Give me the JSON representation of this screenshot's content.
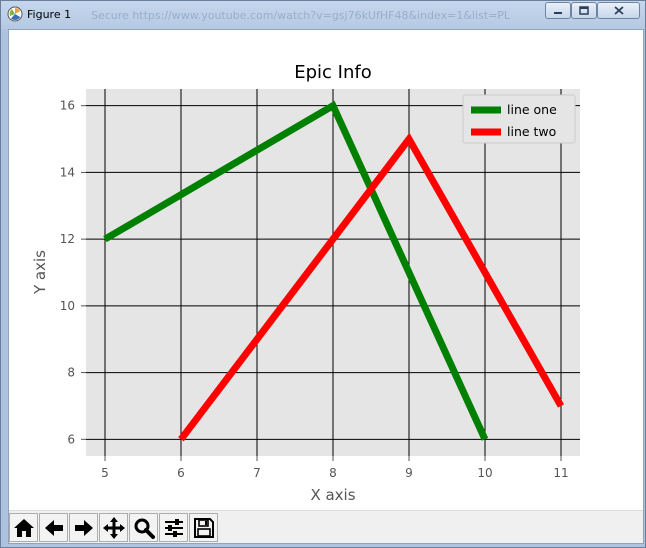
{
  "window": {
    "title": "Figure 1",
    "background_address_text": "Secure  https://www.youtube.com/watch?v=gsj76kUfHF48&index=1&list=PL"
  },
  "toolbar": {
    "buttons": [
      {
        "icon": "home-icon",
        "name": "home-button"
      },
      {
        "icon": "back-arrow-icon",
        "name": "back-button"
      },
      {
        "icon": "forward-arrow-icon",
        "name": "forward-button"
      },
      {
        "icon": "pan-icon",
        "name": "pan-button"
      },
      {
        "icon": "zoom-icon",
        "name": "zoom-button"
      },
      {
        "icon": "configure-subplots-icon",
        "name": "subplots-button"
      },
      {
        "icon": "save-icon",
        "name": "save-button"
      }
    ]
  },
  "chart_data": {
    "type": "line",
    "title": "Epic Info",
    "xlabel": "X axis",
    "ylabel": "Y axis",
    "xlim": [
      4.75,
      11.25
    ],
    "ylim": [
      5.5,
      16.5
    ],
    "xticks": [
      5,
      6,
      7,
      8,
      9,
      10,
      11
    ],
    "yticks": [
      6,
      8,
      10,
      12,
      14,
      16
    ],
    "grid": true,
    "legend_position": "top-right",
    "background_color": "#e5e5e5",
    "series": [
      {
        "name": "line one",
        "color": "#008000",
        "x": [
          5,
          8,
          10
        ],
        "y": [
          12,
          16,
          6
        ]
      },
      {
        "name": "line two",
        "color": "#ff0000",
        "x": [
          6,
          9,
          11
        ],
        "y": [
          6,
          15,
          7
        ]
      }
    ]
  }
}
